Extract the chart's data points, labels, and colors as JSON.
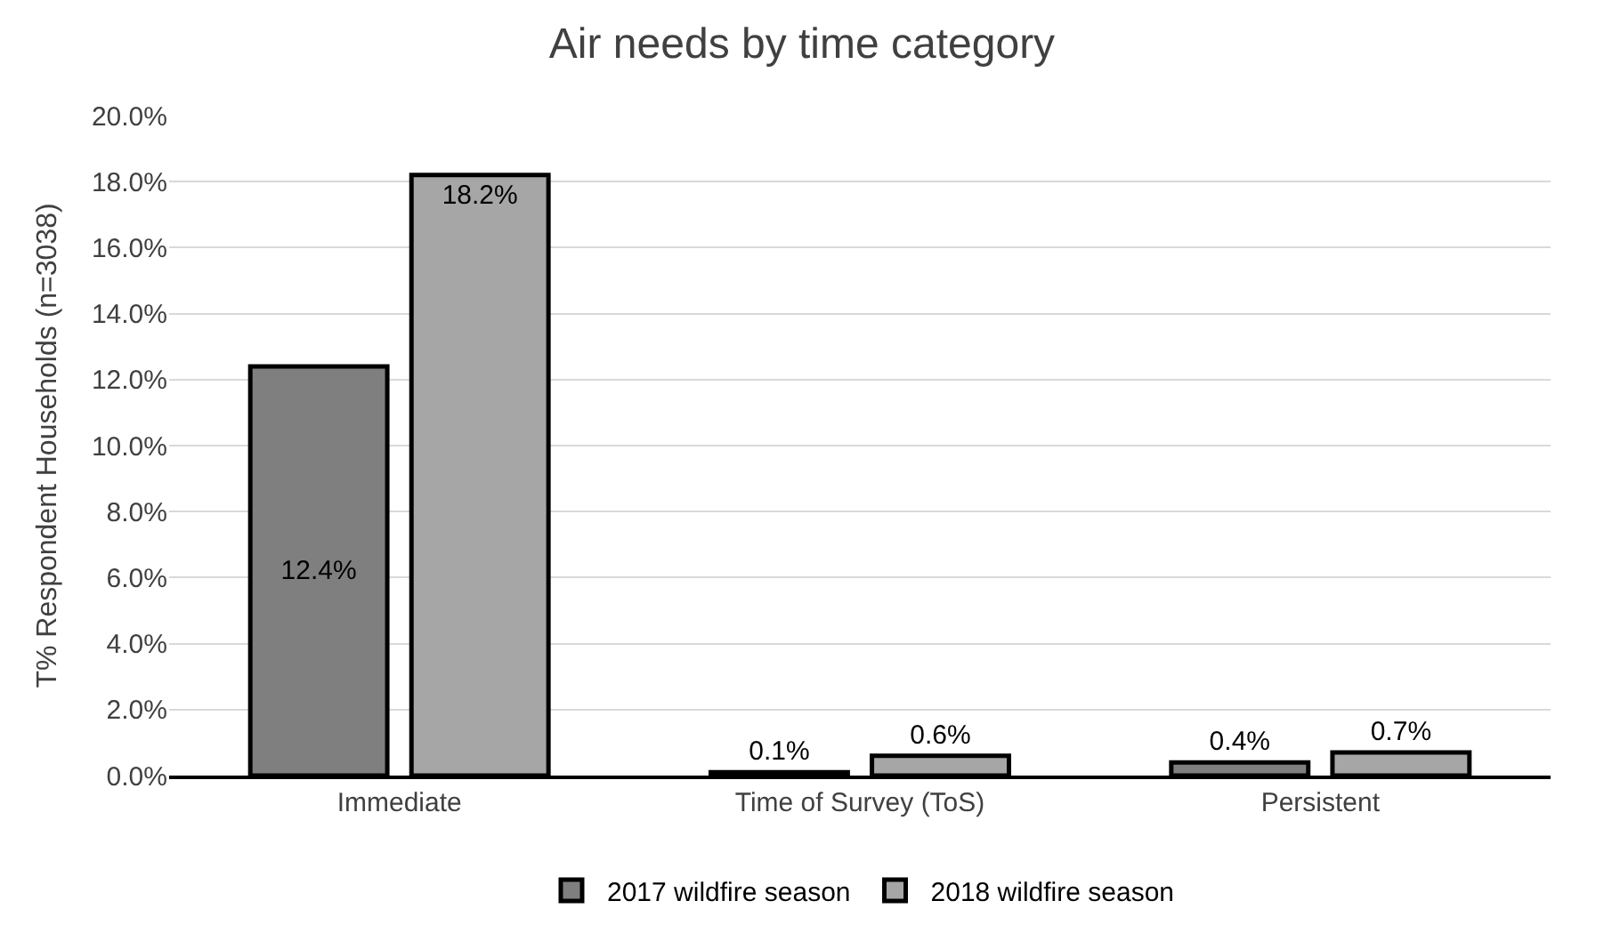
{
  "chart_data": {
    "type": "bar",
    "title": "Air needs by time category",
    "ylabel": "T% Respondent Households (n=3038)",
    "categories": [
      "Immediate",
      "Time of Survey (ToS)",
      "Persistent"
    ],
    "series": [
      {
        "name": "2017 wildfire season",
        "color": "#7f7f7f",
        "values": [
          12.4,
          0.1,
          0.4
        ],
        "value_labels": [
          "12.4%",
          "0.1%",
          "0.4%"
        ]
      },
      {
        "name": "2018 wildfire season",
        "color": "#a6a6a6",
        "values": [
          18.2,
          0.6,
          0.7
        ],
        "value_labels": [
          "18.2%",
          "0.6%",
          "0.7%"
        ]
      }
    ],
    "ylim": [
      0,
      20
    ],
    "yticks": [
      {
        "value": 0,
        "label": "0.0%"
      },
      {
        "value": 2,
        "label": "2.0%"
      },
      {
        "value": 4,
        "label": "4.0%"
      },
      {
        "value": 6,
        "label": "6.0%"
      },
      {
        "value": 8,
        "label": "8.0%"
      },
      {
        "value": 10,
        "label": "10.0%"
      },
      {
        "value": 12,
        "label": "12.0%"
      },
      {
        "value": 14,
        "label": "14.0%"
      },
      {
        "value": 16,
        "label": "16.0%"
      },
      {
        "value": 18,
        "label": "18.0%"
      },
      {
        "value": 20,
        "label": "20.0%"
      }
    ],
    "grid": "y",
    "legend": "bottom"
  }
}
